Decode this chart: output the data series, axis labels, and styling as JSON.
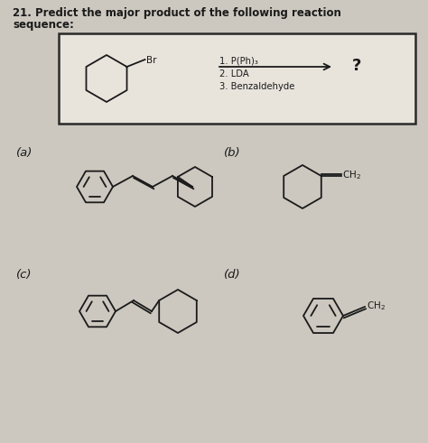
{
  "title_line1": "21. Predict the major product of the following reaction",
  "title_line2": "sequence:",
  "background_color": "#ccc8bf",
  "box_facecolor": "#e8e4dc",
  "text_color": "#1a1a1a",
  "reaction_steps": [
    "1. P(Ph)₃",
    "2. LDA",
    "3. Benzaldehyde"
  ],
  "question_mark": "?",
  "labels": [
    "(a)",
    "(b)",
    "(c)",
    "(d)"
  ],
  "figsize": [
    4.74,
    4.91
  ],
  "dpi": 100
}
